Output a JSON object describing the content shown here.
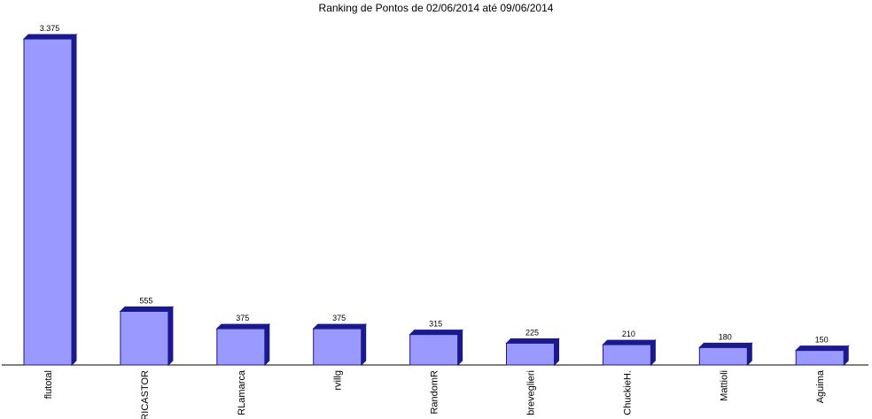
{
  "chart_data": {
    "type": "bar3d",
    "title": "Ranking de Pontos de 02/06/2014 até 09/06/2014",
    "categories": [
      "flutotal",
      "RICASTOR",
      "RLamarca",
      "rvillg",
      "RandomR",
      "breveglieri",
      "ChuckieH.",
      "Mattioli",
      "Aguima"
    ],
    "values": [
      3375,
      555,
      375,
      375,
      315,
      225,
      210,
      180,
      150
    ],
    "value_labels": [
      "3.375",
      "555",
      "375",
      "375",
      "315",
      "225",
      "210",
      "180",
      "150"
    ],
    "color": "#9999ff",
    "edge_color": "#1a1a8c"
  }
}
